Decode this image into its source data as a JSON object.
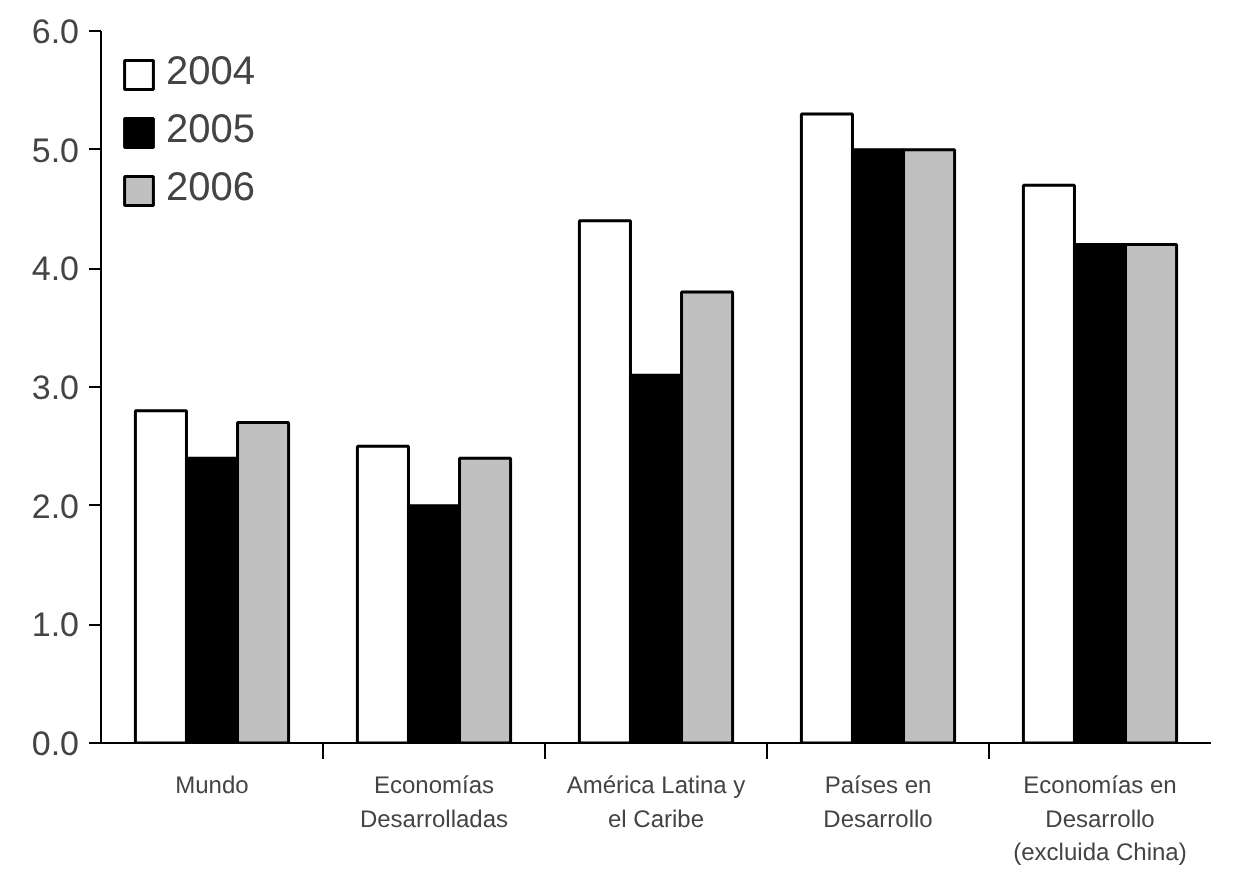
{
  "chart_data": {
    "type": "bar",
    "categories": [
      "Mundo",
      "Economías\nDesarrolladas",
      "América Latina y\nel Caribe",
      "Países en\nDesarrollo",
      "Economías en\nDesarrollo\n(excluida China)"
    ],
    "series": [
      {
        "name": "2004",
        "color": "#ffffff",
        "values": [
          2.8,
          2.5,
          4.4,
          5.3,
          4.7
        ]
      },
      {
        "name": "2005",
        "color": "#000000",
        "values": [
          2.4,
          2.0,
          3.1,
          5.0,
          4.2
        ]
      },
      {
        "name": "2006",
        "color": "#c0c0c0",
        "values": [
          2.7,
          2.4,
          3.8,
          5.0,
          4.2
        ]
      }
    ],
    "ylim": [
      0,
      6
    ],
    "yticks": [
      {
        "value": 0,
        "label": "0.0"
      },
      {
        "value": 1,
        "label": "1.0"
      },
      {
        "value": 2,
        "label": "2.0"
      },
      {
        "value": 3,
        "label": "3.0"
      },
      {
        "value": 4,
        "label": "4.0"
      },
      {
        "value": 5,
        "label": "5.0"
      },
      {
        "value": 6,
        "label": "6.0"
      }
    ],
    "grid": false,
    "legend": "top left"
  }
}
